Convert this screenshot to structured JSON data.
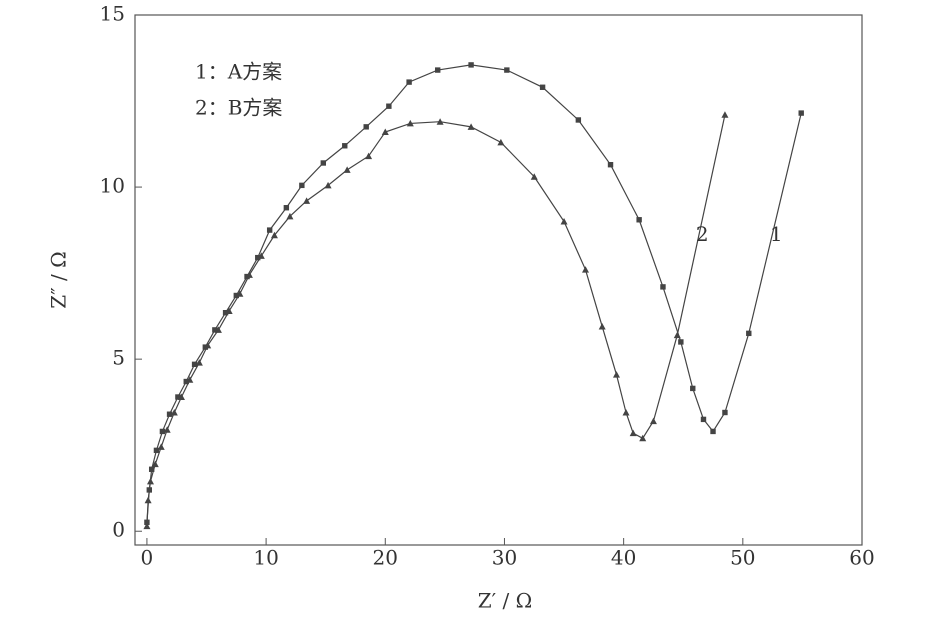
{
  "chart_data": {
    "type": "line",
    "x_label": "Z′ / Ω",
    "y_label": "Z″ / Ω",
    "xlim": [
      -1,
      60
    ],
    "ylim": [
      -0.4,
      15
    ],
    "xticks": [
      0,
      10,
      20,
      30,
      40,
      50,
      60
    ],
    "yticks": [
      0,
      5,
      10,
      15
    ],
    "legend": "upper left",
    "series": [
      {
        "name": "1：A方案",
        "marker": "square",
        "color": "#444444",
        "x": [
          0,
          0.2,
          0.4,
          0.8,
          1.3,
          1.9,
          2.6,
          3.3,
          4.0,
          4.9,
          5.7,
          6.6,
          7.5,
          8.4,
          9.3,
          10.3,
          11.7,
          13,
          14.8,
          16.6,
          18.4,
          20.3,
          22,
          24.4,
          27.2,
          30.2,
          33.2,
          36.2,
          38.9,
          41.3,
          43.3,
          44.8,
          45.8,
          46.7,
          47.5,
          48.5,
          50.5,
          54.9
        ],
        "values": [
          0.26,
          1.2,
          1.8,
          2.35,
          2.9,
          3.4,
          3.9,
          4.35,
          4.85,
          5.35,
          5.85,
          6.35,
          6.85,
          7.4,
          7.95,
          8.75,
          9.4,
          10.05,
          10.7,
          11.2,
          11.75,
          12.35,
          13.05,
          13.4,
          13.55,
          13.4,
          12.9,
          11.95,
          10.65,
          9.05,
          7.1,
          5.5,
          4.15,
          3.25,
          2.9,
          3.45,
          5.75,
          12.15
        ]
      },
      {
        "name": "2：B方案",
        "marker": "triangle",
        "color": "#444444",
        "x": [
          0,
          0.1,
          0.3,
          0.7,
          1.2,
          1.7,
          2.3,
          2.9,
          3.6,
          4.4,
          5.1,
          6.0,
          6.9,
          7.8,
          8.6,
          9.6,
          10.7,
          12,
          13.4,
          15.2,
          16.8,
          18.6,
          20,
          22.1,
          24.6,
          27.2,
          29.7,
          32.5,
          35,
          36.8,
          38.2,
          39.4,
          40.2,
          40.8,
          41.6,
          42.5,
          44.5,
          48.5
        ],
        "values": [
          0.15,
          0.9,
          1.45,
          1.95,
          2.45,
          2.95,
          3.45,
          3.9,
          4.4,
          4.9,
          5.4,
          5.85,
          6.4,
          6.9,
          7.45,
          8.0,
          8.6,
          9.15,
          9.6,
          10.05,
          10.5,
          10.9,
          11.6,
          11.85,
          11.9,
          11.75,
          11.3,
          10.3,
          9.0,
          7.6,
          5.95,
          4.55,
          3.45,
          2.85,
          2.7,
          3.2,
          5.7,
          12.1
        ]
      }
    ],
    "annotations": [
      {
        "text": "2",
        "x": 46.6,
        "y": 8.6
      },
      {
        "text": "1",
        "x": 52.8,
        "y": 8.6
      }
    ]
  }
}
